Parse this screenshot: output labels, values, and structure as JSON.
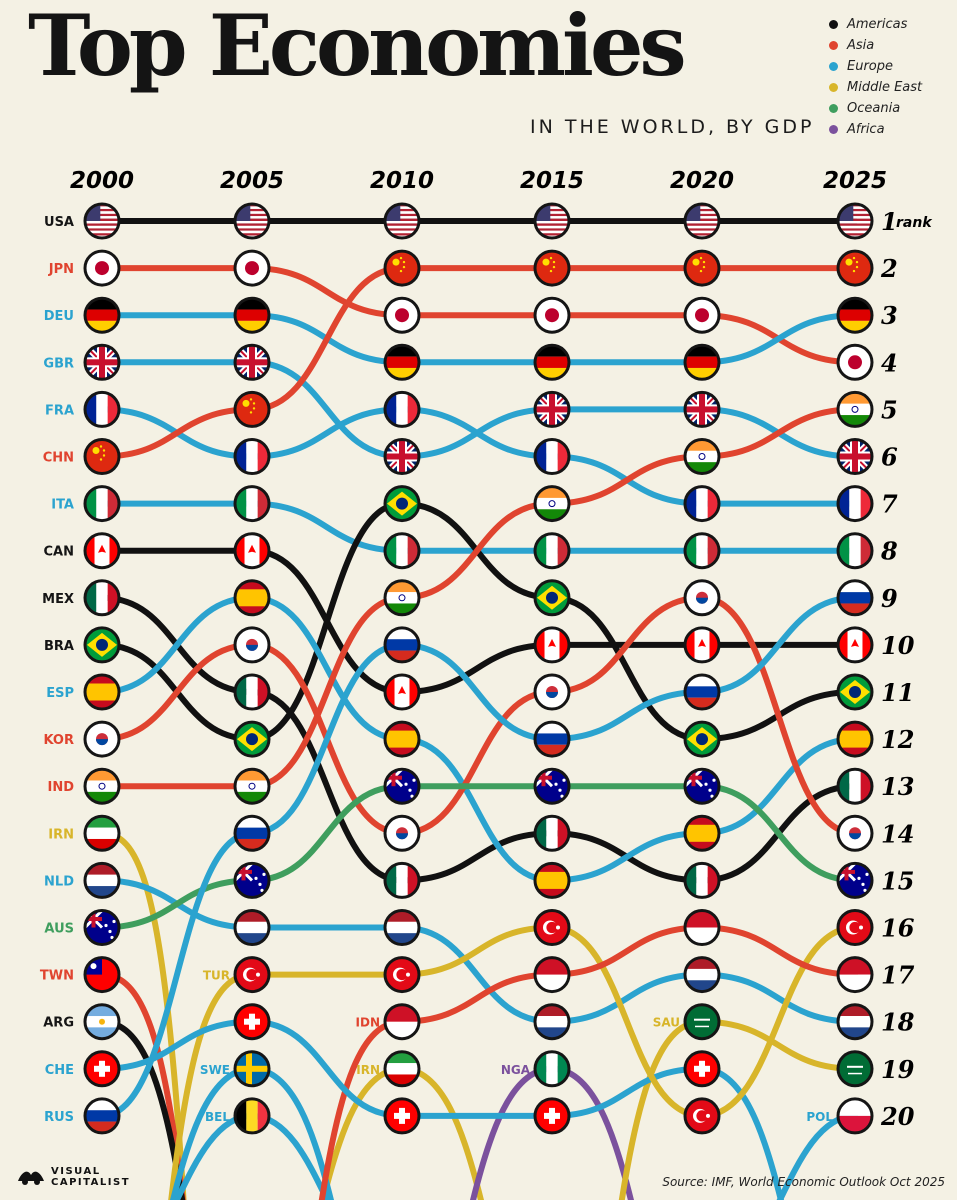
{
  "header": {
    "title": "Top Economies",
    "subtitle": "IN THE WORLD, BY GDP"
  },
  "legend": [
    {
      "label": "Americas",
      "color": "#111111"
    },
    {
      "label": "Asia",
      "color": "#e0442f"
    },
    {
      "label": "Europe",
      "color": "#2ba3cf"
    },
    {
      "label": "Middle East",
      "color": "#d8b52a"
    },
    {
      "label": "Oceania",
      "color": "#3f9e5e"
    },
    {
      "label": "Africa",
      "color": "#7b519d"
    }
  ],
  "footer": {
    "source": "Source: IMF, World Economic Outlook Oct 2025",
    "brand_line1": "VISUAL",
    "brand_line2": "CAPITALIST"
  },
  "chart_data": {
    "type": "bump",
    "title": "Top Economies",
    "subtitle": "IN THE WORLD, BY GDP",
    "x": [
      "2000",
      "2005",
      "2010",
      "2015",
      "2020",
      "2025"
    ],
    "rank_label": "rank",
    "max_rank": 20,
    "region_colors": {
      "Americas": "#111111",
      "Asia": "#e0442f",
      "Europe": "#2ba3cf",
      "Middle East": "#d8b52a",
      "Oceania": "#3f9e5e",
      "Africa": "#7b519d"
    },
    "row_labels_2000": [
      {
        "code": "USA",
        "region": "Americas"
      },
      {
        "code": "JPN",
        "region": "Asia"
      },
      {
        "code": "DEU",
        "region": "Europe"
      },
      {
        "code": "GBR",
        "region": "Europe"
      },
      {
        "code": "FRA",
        "region": "Europe"
      },
      {
        "code": "CHN",
        "region": "Asia"
      },
      {
        "code": "ITA",
        "region": "Europe"
      },
      {
        "code": "CAN",
        "region": "Americas"
      },
      {
        "code": "MEX",
        "region": "Americas"
      },
      {
        "code": "BRA",
        "region": "Americas"
      },
      {
        "code": "ESP",
        "region": "Europe"
      },
      {
        "code": "KOR",
        "region": "Asia"
      },
      {
        "code": "IND",
        "region": "Asia"
      },
      {
        "code": "IRN",
        "region": "Middle East"
      },
      {
        "code": "NLD",
        "region": "Europe"
      },
      {
        "code": "AUS",
        "region": "Oceania"
      },
      {
        "code": "TWN",
        "region": "Asia"
      },
      {
        "code": "ARG",
        "region": "Americas"
      },
      {
        "code": "CHE",
        "region": "Europe"
      },
      {
        "code": "RUS",
        "region": "Europe"
      }
    ],
    "entrant_labels": [
      {
        "code": "TUR",
        "year": "2005",
        "rank": 17
      },
      {
        "code": "SWE",
        "year": "2005",
        "rank": 19
      },
      {
        "code": "BEL",
        "year": "2005",
        "rank": 20
      },
      {
        "code": "IDN",
        "year": "2010",
        "rank": 18
      },
      {
        "code": "IRN",
        "year": "2010",
        "rank": 19
      },
      {
        "code": "NGA",
        "year": "2015",
        "rank": 19
      },
      {
        "code": "SAU",
        "year": "2020",
        "rank": 18
      },
      {
        "code": "POL",
        "year": "2025",
        "rank": 20
      }
    ],
    "series": [
      {
        "name": "USA",
        "region": "Americas",
        "ranks": [
          1,
          1,
          1,
          1,
          1,
          1
        ]
      },
      {
        "name": "JPN",
        "region": "Asia",
        "ranks": [
          2,
          2,
          3,
          3,
          3,
          4
        ]
      },
      {
        "name": "DEU",
        "region": "Europe",
        "ranks": [
          3,
          3,
          4,
          4,
          4,
          3
        ]
      },
      {
        "name": "GBR",
        "region": "Europe",
        "ranks": [
          4,
          4,
          6,
          5,
          5,
          6
        ]
      },
      {
        "name": "FRA",
        "region": "Europe",
        "ranks": [
          5,
          6,
          5,
          6,
          7,
          7
        ]
      },
      {
        "name": "CHN",
        "region": "Asia",
        "ranks": [
          6,
          5,
          2,
          2,
          2,
          2
        ]
      },
      {
        "name": "ITA",
        "region": "Europe",
        "ranks": [
          7,
          7,
          8,
          8,
          8,
          8
        ]
      },
      {
        "name": "CAN",
        "region": "Americas",
        "ranks": [
          8,
          8,
          11,
          10,
          10,
          10
        ]
      },
      {
        "name": "MEX",
        "region": "Americas",
        "ranks": [
          9,
          11,
          15,
          14,
          15,
          13
        ]
      },
      {
        "name": "BRA",
        "region": "Americas",
        "ranks": [
          10,
          12,
          7,
          9,
          12,
          11
        ]
      },
      {
        "name": "ESP",
        "region": "Europe",
        "ranks": [
          11,
          9,
          12,
          15,
          14,
          12
        ]
      },
      {
        "name": "KOR",
        "region": "Asia",
        "ranks": [
          12,
          10,
          14,
          11,
          9,
          14
        ]
      },
      {
        "name": "IND",
        "region": "Asia",
        "ranks": [
          13,
          13,
          9,
          7,
          6,
          5
        ]
      },
      {
        "name": "IRN",
        "region": "Middle East",
        "ranks": [
          14,
          null,
          19,
          null,
          null,
          null
        ]
      },
      {
        "name": "NLD",
        "region": "Europe",
        "ranks": [
          15,
          16,
          16,
          18,
          17,
          18
        ]
      },
      {
        "name": "AUS",
        "region": "Oceania",
        "ranks": [
          16,
          15,
          13,
          13,
          13,
          15
        ]
      },
      {
        "name": "TWN",
        "region": "Asia",
        "ranks": [
          17,
          null,
          null,
          null,
          null,
          null
        ]
      },
      {
        "name": "ARG",
        "region": "Americas",
        "ranks": [
          18,
          null,
          null,
          null,
          null,
          null
        ]
      },
      {
        "name": "CHE",
        "region": "Europe",
        "ranks": [
          19,
          18,
          20,
          20,
          19,
          null
        ]
      },
      {
        "name": "RUS",
        "region": "Europe",
        "ranks": [
          20,
          14,
          10,
          12,
          11,
          9
        ]
      },
      {
        "name": "TUR",
        "region": "Middle East",
        "ranks": [
          null,
          17,
          17,
          16,
          20,
          16
        ]
      },
      {
        "name": "SWE",
        "region": "Europe",
        "ranks": [
          null,
          19,
          null,
          null,
          null,
          null
        ]
      },
      {
        "name": "BEL",
        "region": "Europe",
        "ranks": [
          null,
          20,
          null,
          null,
          null,
          null
        ]
      },
      {
        "name": "IDN",
        "region": "Asia",
        "ranks": [
          null,
          null,
          18,
          17,
          16,
          17
        ]
      },
      {
        "name": "NGA",
        "region": "Africa",
        "ranks": [
          null,
          null,
          null,
          19,
          null,
          null
        ]
      },
      {
        "name": "SAU",
        "region": "Middle East",
        "ranks": [
          null,
          null,
          null,
          null,
          18,
          19
        ]
      },
      {
        "name": "POL",
        "region": "Europe",
        "ranks": [
          null,
          null,
          null,
          null,
          null,
          20
        ]
      }
    ]
  }
}
